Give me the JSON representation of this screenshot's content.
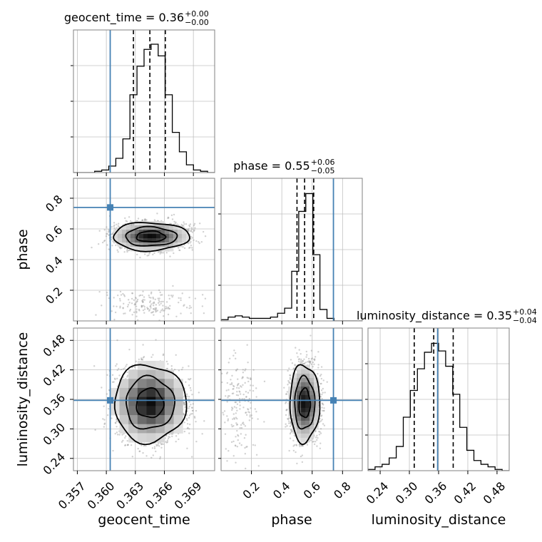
{
  "chart_data": {
    "type": "corner",
    "parameters": [
      "geocent_time",
      "phase",
      "luminosity_distance"
    ],
    "truth": {
      "geocent_time": 0.3604,
      "phase": 0.74,
      "luminosity_distance": 0.358
    },
    "ranges": {
      "geocent_time": [
        0.3566,
        0.3712
      ],
      "phase": [
        0.0,
        0.93
      ],
      "luminosity_distance": [
        0.215,
        0.505
      ]
    },
    "ticks": {
      "geocent_time": {
        "values": [
          0.357,
          0.36,
          0.363,
          0.366,
          0.369
        ],
        "labels": [
          "0.357",
          "0.360",
          "0.363",
          "0.366",
          "0.369"
        ]
      },
      "phase": {
        "values": [
          0.2,
          0.4,
          0.6,
          0.8
        ],
        "labels": [
          "0.2",
          "0.4",
          "0.6",
          "0.8"
        ]
      },
      "luminosity_distance": {
        "values": [
          0.24,
          0.3,
          0.36,
          0.42,
          0.48
        ],
        "labels": [
          "0.24",
          "0.30",
          "0.36",
          "0.42",
          "0.48"
        ]
      }
    },
    "titles": [
      {
        "param": "geocent_time",
        "main": "geocent_time = 0.36",
        "plus": "+0.00",
        "minus": "−0.00"
      },
      {
        "param": "phase",
        "main": "phase = 0.55",
        "plus": "+0.06",
        "minus": "−0.05"
      },
      {
        "param": "luminosity_distance",
        "main": "luminosity_distance = 0.35",
        "plus": "+0.04",
        "minus": "−0.04"
      }
    ],
    "quantiles": {
      "geocent_time": [
        0.3628,
        0.3645,
        0.3661
      ],
      "phase": [
        0.5,
        0.55,
        0.61
      ],
      "luminosity_distance": [
        0.31,
        0.35,
        0.39
      ]
    },
    "histograms": {
      "geocent_time": {
        "edges": [
          0.3566,
          0.35733,
          0.35806,
          0.35879,
          0.35952,
          0.36025,
          0.36098,
          0.36171,
          0.36244,
          0.36317,
          0.3639,
          0.36463,
          0.36536,
          0.36609,
          0.36682,
          0.36755,
          0.36828,
          0.36901,
          0.36974,
          0.37047,
          0.3712
        ],
        "counts": [
          0,
          0,
          0,
          0.01,
          0.02,
          0.05,
          0.11,
          0.26,
          0.6,
          0.82,
          0.95,
          0.99,
          0.9,
          0.6,
          0.31,
          0.16,
          0.06,
          0.02,
          0.01,
          0
        ],
        "ymax": 1.1
      },
      "phase": {
        "edges": [
          0.0,
          0.0465,
          0.093,
          0.1395,
          0.186,
          0.2325,
          0.279,
          0.3255,
          0.372,
          0.4185,
          0.465,
          0.5115,
          0.558,
          0.6045,
          0.651,
          0.6975,
          0.744,
          0.7905,
          0.837,
          0.8835,
          0.93
        ],
        "counts": [
          0.01,
          0.03,
          0.04,
          0.03,
          0.02,
          0.02,
          0.02,
          0.03,
          0.06,
          0.1,
          0.39,
          0.86,
          1.0,
          0.52,
          0.09,
          0.02,
          0,
          0,
          0,
          0
        ],
        "ymax": 1.12
      },
      "luminosity_distance": {
        "edges": [
          0.215,
          0.2295,
          0.244,
          0.2585,
          0.273,
          0.2875,
          0.302,
          0.3165,
          0.331,
          0.3455,
          0.36,
          0.3745,
          0.389,
          0.4035,
          0.418,
          0.4325,
          0.447,
          0.4615,
          0.476,
          0.4905,
          0.505
        ],
        "counts": [
          0.01,
          0.03,
          0.05,
          0.1,
          0.19,
          0.42,
          0.63,
          0.8,
          0.93,
          1.0,
          0.94,
          0.82,
          0.6,
          0.34,
          0.16,
          0.08,
          0.05,
          0.03,
          0.01,
          0
        ],
        "ymax": 1.12
      }
    },
    "posterior_2d": {
      "geocent_time|phase": {
        "center": [
          0.3646,
          0.55
        ],
        "sigma": [
          0.0018,
          0.042
        ],
        "secondary": {
          "center": [
            0.3645,
            0.11
          ],
          "sigma": [
            0.0023,
            0.05
          ],
          "fraction": 0.06
        }
      },
      "geocent_time|luminosity_distance": {
        "center": [
          0.3645,
          0.352
        ],
        "sigma": [
          0.0017,
          0.036
        ]
      },
      "phase|luminosity_distance": {
        "center": [
          0.55,
          0.352
        ],
        "sigma": [
          0.045,
          0.036
        ],
        "secondary": {
          "center": [
            0.12,
            0.352
          ],
          "sigma": [
            0.06,
            0.05
          ],
          "fraction": 0.06
        }
      }
    },
    "colors": {
      "truth": "#4682b4",
      "contour": "#000000",
      "hist": "#000000",
      "grid": "#c0c0c0",
      "axes": "#808080"
    }
  }
}
